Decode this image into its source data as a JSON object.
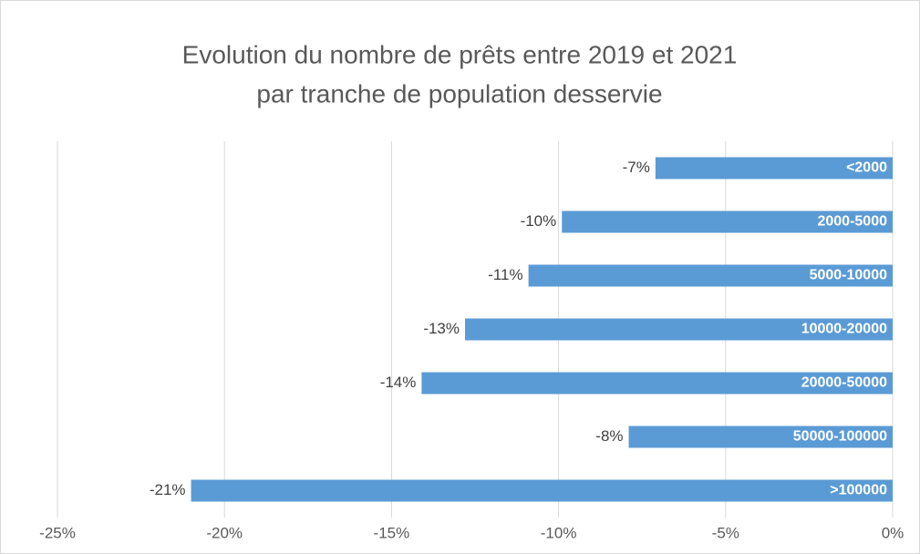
{
  "chart_data": {
    "type": "bar",
    "orientation": "horizontal",
    "title": [
      "Evolution du nombre de prêts entre 2019 et 2021",
      "par tranche de population desservie"
    ],
    "categories": [
      "<2000",
      "2000-5000",
      "5000-10000",
      "10000-20000",
      "20000-50000",
      "50000-100000",
      ">100000"
    ],
    "values": [
      -7.1,
      -9.9,
      -10.9,
      -12.8,
      -14.1,
      -7.9,
      -21.0
    ],
    "value_labels": [
      "-7%",
      "-10%",
      "-11%",
      "-13%",
      "-14%",
      "-8%",
      "-21%"
    ],
    "color": "#5b9bd5",
    "xlim": [
      -25,
      0
    ],
    "xticks": [
      {
        "value": -25,
        "label": "-25%"
      },
      {
        "value": -20,
        "label": "-20%"
      },
      {
        "value": -15,
        "label": "-15%"
      },
      {
        "value": -10,
        "label": "-10%"
      },
      {
        "value": -5,
        "label": "-5%"
      },
      {
        "value": 0,
        "label": "0%"
      }
    ],
    "grid": true
  }
}
